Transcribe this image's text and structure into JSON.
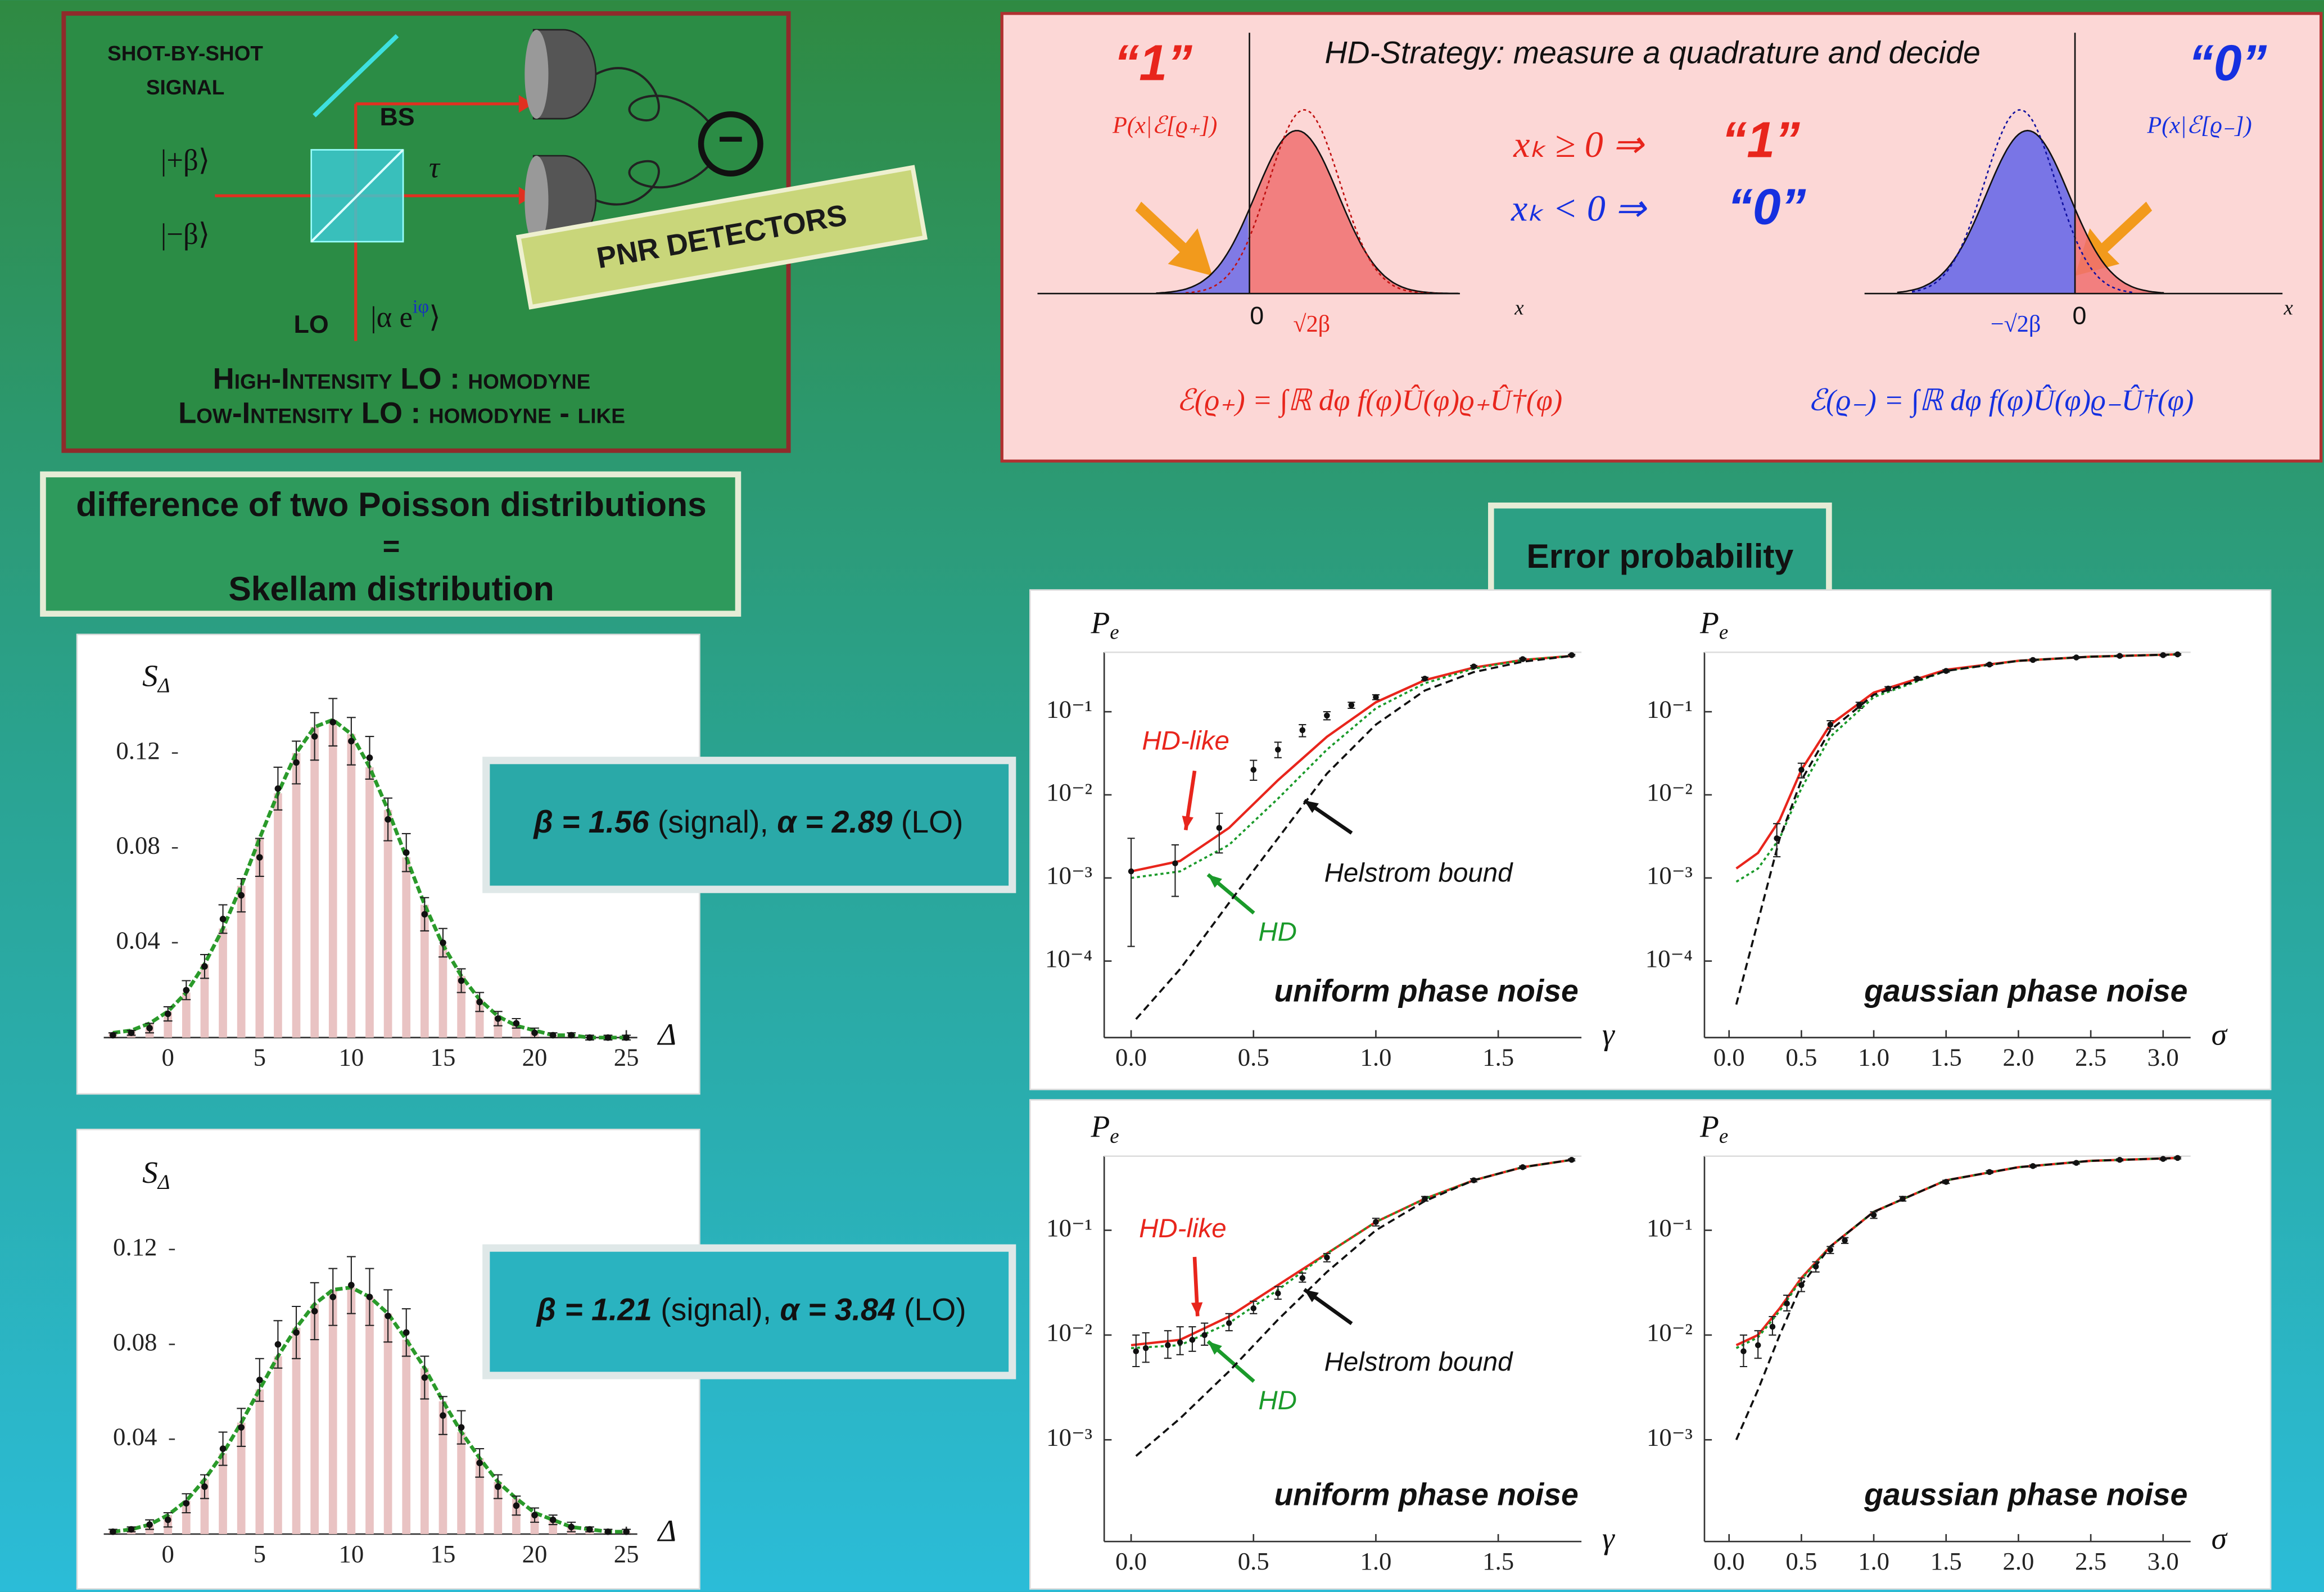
{
  "setup": {
    "signal_title": [
      "SHOT-BY-SHOT",
      "SIGNAL"
    ],
    "beam_splitter": "BS",
    "transmissivity": "τ",
    "state_plus": "|+β⟩",
    "state_minus": "|−β⟩",
    "local_oscillator": "LO",
    "lo_state": [
      "|α e",
      "iφ",
      "⟩"
    ],
    "detectors": "PNR DETECTORS",
    "subtract": "−",
    "notes": [
      "High-Intensity LO : homodyne",
      "Low-Intensity LO : homodyne - like"
    ]
  },
  "strategy": {
    "title": "HD-Strategy: measure a quadrature and decide",
    "label_one": "“1”",
    "label_zero": "“0”",
    "dist_plus": "P(x|ℰ[ϱ₊])",
    "dist_minus": "P(x|ℰ[ϱ₋])",
    "rules": [
      {
        "condition": "xₖ ≥ 0 ⇒",
        "outcome": "“1”"
      },
      {
        "condition": "xₖ < 0 ⇒",
        "outcome": "“0”"
      }
    ],
    "ticks_plus": [
      "0",
      "√2β"
    ],
    "ticks_minus": [
      "−√2β",
      "0"
    ],
    "axis": "x",
    "channel_plus": "ℰ(ϱ₊) = ∫ℝ dφ f(φ)Û(φ)ϱ₊Û†(φ)",
    "channel_minus": "ℰ(ϱ₋) = ∫ℝ dφ f(φ)Û(φ)ϱ₋Û†(φ)"
  },
  "skellam_label": [
    "difference of two Poisson distributions",
    "=",
    "Skellam distribution"
  ],
  "error_label": "Error probability",
  "settings": [
    {
      "beta": "β = 1.56",
      "beta_note": " (signal), ",
      "alpha": "α = 2.89",
      "alpha_note": " (LO)"
    },
    {
      "beta": "β = 1.21",
      "beta_note": " (signal), ",
      "alpha": "α = 3.84",
      "alpha_note": " (LO)"
    }
  ],
  "chart_data": [
    {
      "type": "bar",
      "ylabel": "S",
      "ylabel_sub": "Δ",
      "xlabel": "Δ",
      "color": "#e9c3c3",
      "fit_color": "#2a9a2a",
      "x": [
        -3,
        -2,
        -1,
        0,
        1,
        2,
        3,
        4,
        5,
        6,
        7,
        8,
        9,
        10,
        11,
        12,
        13,
        14,
        15,
        16,
        17,
        18,
        19,
        20,
        21,
        22,
        23,
        24,
        25
      ],
      "values": [
        0.002,
        0.003,
        0.006,
        0.011,
        0.019,
        0.031,
        0.046,
        0.064,
        0.084,
        0.103,
        0.12,
        0.131,
        0.134,
        0.128,
        0.114,
        0.096,
        0.076,
        0.056,
        0.039,
        0.026,
        0.016,
        0.009,
        0.005,
        0.003,
        0.001,
        0.001,
        0.0,
        0.0,
        0.0
      ],
      "measured": {
        "values": [
          0.001,
          0.002,
          0.004,
          0.01,
          0.02,
          0.03,
          0.05,
          0.06,
          0.076,
          0.105,
          0.116,
          0.127,
          0.133,
          0.125,
          0.118,
          0.092,
          0.078,
          0.052,
          0.04,
          0.024,
          0.015,
          0.008,
          0.006,
          0.002,
          0.001,
          0.001,
          0.0,
          0.0,
          0.0
        ],
        "errors": [
          0.001,
          0.001,
          0.002,
          0.003,
          0.004,
          0.005,
          0.006,
          0.007,
          0.008,
          0.009,
          0.009,
          0.01,
          0.01,
          0.01,
          0.009,
          0.009,
          0.008,
          0.007,
          0.006,
          0.005,
          0.004,
          0.003,
          0.002,
          0.002,
          0.001,
          0.001,
          0.001,
          0.001,
          0.001
        ]
      },
      "xlim": [
        -3.5,
        25.6
      ],
      "ylim": [
        0,
        0.16
      ],
      "xticks": [
        0,
        5,
        10,
        15,
        20,
        25
      ],
      "yticks": [
        0.04,
        0.08,
        0.12
      ]
    },
    {
      "type": "bar",
      "ylabel": "S",
      "ylabel_sub": "Δ",
      "xlabel": "Δ",
      "color": "#e9c3c3",
      "fit_color": "#2a9a2a",
      "x": [
        -3,
        -2,
        -1,
        0,
        1,
        2,
        3,
        4,
        5,
        6,
        7,
        8,
        9,
        10,
        11,
        12,
        13,
        14,
        15,
        16,
        17,
        18,
        19,
        20,
        21,
        22,
        23,
        24,
        25
      ],
      "values": [
        0.001,
        0.002,
        0.004,
        0.008,
        0.014,
        0.023,
        0.034,
        0.047,
        0.061,
        0.075,
        0.087,
        0.097,
        0.103,
        0.104,
        0.1,
        0.093,
        0.082,
        0.07,
        0.056,
        0.043,
        0.032,
        0.022,
        0.015,
        0.009,
        0.006,
        0.003,
        0.002,
        0.001,
        0.001
      ],
      "measured": {
        "values": [
          0.001,
          0.002,
          0.004,
          0.006,
          0.013,
          0.02,
          0.036,
          0.045,
          0.065,
          0.08,
          0.085,
          0.094,
          0.1,
          0.105,
          0.1,
          0.092,
          0.085,
          0.066,
          0.05,
          0.045,
          0.03,
          0.02,
          0.012,
          0.008,
          0.006,
          0.003,
          0.002,
          0.001,
          0.001
        ],
        "errors": [
          0.001,
          0.001,
          0.002,
          0.003,
          0.004,
          0.005,
          0.007,
          0.008,
          0.009,
          0.01,
          0.011,
          0.012,
          0.012,
          0.012,
          0.012,
          0.011,
          0.01,
          0.009,
          0.008,
          0.007,
          0.006,
          0.005,
          0.004,
          0.003,
          0.002,
          0.002,
          0.001,
          0.001,
          0.001
        ]
      },
      "xlim": [
        -3.5,
        25.6
      ],
      "ylim": [
        0,
        0.16
      ],
      "xticks": [
        0,
        5,
        10,
        15,
        20,
        25
      ],
      "yticks": [
        0.04,
        0.08,
        0.12
      ]
    },
    {
      "type": "line",
      "log_y": true,
      "ylabel": "P",
      "ylabel_sub": "e",
      "xlabel": "γ",
      "subtitle": "uniform phase noise",
      "series": [
        {
          "name": "HD-like",
          "color": "#e8251c",
          "style": "solid",
          "x": [
            0,
            0.2,
            0.4,
            0.6,
            0.8,
            1.0,
            1.2,
            1.4,
            1.6,
            1.8
          ],
          "values": [
            0.0012,
            0.0016,
            0.004,
            0.015,
            0.05,
            0.13,
            0.24,
            0.34,
            0.42,
            0.47
          ]
        },
        {
          "name": "HD",
          "color": "#1a9a2a",
          "style": "dotted",
          "x": [
            0,
            0.2,
            0.4,
            0.6,
            0.8,
            1.0,
            1.2,
            1.4,
            1.6,
            1.8
          ],
          "values": [
            0.001,
            0.0012,
            0.0025,
            0.009,
            0.035,
            0.11,
            0.22,
            0.33,
            0.42,
            0.47
          ]
        },
        {
          "name": "Helstrom bound",
          "color": "#111111",
          "style": "dashed",
          "x": [
            0.02,
            0.2,
            0.4,
            0.6,
            0.8,
            1.0,
            1.2,
            1.4,
            1.6,
            1.8
          ],
          "values": [
            2e-05,
            8e-05,
            0.0005,
            0.003,
            0.018,
            0.07,
            0.18,
            0.3,
            0.4,
            0.47
          ]
        }
      ],
      "measured": {
        "x": [
          0.0,
          0.18,
          0.36,
          0.5,
          0.6,
          0.7,
          0.8,
          0.9,
          1.0,
          1.2,
          1.4,
          1.6,
          1.8
        ],
        "values": [
          0.0012,
          0.0015,
          0.004,
          0.02,
          0.035,
          0.06,
          0.09,
          0.12,
          0.15,
          0.25,
          0.35,
          0.43,
          0.48
        ],
        "low": [
          0.00015,
          0.0006,
          0.002,
          0.015,
          0.028,
          0.05,
          0.08,
          0.11,
          0.14,
          0.24,
          0.34,
          0.42,
          0.47
        ],
        "high": [
          0.003,
          0.0025,
          0.006,
          0.026,
          0.043,
          0.07,
          0.1,
          0.13,
          0.16,
          0.26,
          0.36,
          0.44,
          0.49
        ]
      },
      "xlim": [
        -0.11,
        1.84
      ],
      "ylim": [
        1.2e-05,
        0.52
      ],
      "xticks": [
        {
          "value": 0,
          "label": "0.0"
        },
        0.5,
        {
          "value": 1,
          "label": "1.0"
        },
        1.5
      ],
      "yticks": [
        {
          "value": 0.1,
          "label": "10⁻¹"
        },
        {
          "value": 0.01,
          "label": "10⁻²"
        },
        {
          "value": 0.001,
          "label": "10⁻³"
        },
        {
          "value": 0.0001,
          "label": "10⁻⁴"
        }
      ]
    },
    {
      "type": "line",
      "log_y": true,
      "ylabel": "P",
      "ylabel_sub": "e",
      "xlabel": "σ",
      "subtitle": "gaussian phase noise",
      "series": [
        {
          "color": "#e8251c",
          "style": "solid",
          "x": [
            0.05,
            0.2,
            0.35,
            0.5,
            0.7,
            1.0,
            1.5,
            2.0,
            2.5,
            3.1
          ],
          "values": [
            0.0013,
            0.002,
            0.005,
            0.02,
            0.07,
            0.17,
            0.32,
            0.41,
            0.46,
            0.49
          ]
        },
        {
          "color": "#1a9a2a",
          "style": "dotted",
          "x": [
            0.05,
            0.2,
            0.35,
            0.5,
            0.7,
            1.0,
            1.5,
            2.0,
            2.5,
            3.1
          ],
          "values": [
            0.0009,
            0.0013,
            0.003,
            0.012,
            0.05,
            0.15,
            0.31,
            0.41,
            0.46,
            0.49
          ]
        },
        {
          "color": "#111111",
          "style": "dashed",
          "x": [
            0.05,
            0.2,
            0.35,
            0.5,
            0.7,
            1.0,
            1.5,
            2.0,
            2.5,
            3.1
          ],
          "values": [
            3e-05,
            0.0003,
            0.003,
            0.015,
            0.06,
            0.16,
            0.31,
            0.41,
            0.46,
            0.49
          ]
        }
      ],
      "measured": {
        "x": [
          0.33,
          0.5,
          0.7,
          0.9,
          1.1,
          1.3,
          1.5,
          1.8,
          2.1,
          2.4,
          2.7,
          3.0,
          3.1
        ],
        "values": [
          0.003,
          0.02,
          0.07,
          0.12,
          0.19,
          0.25,
          0.31,
          0.37,
          0.42,
          0.45,
          0.47,
          0.48,
          0.49
        ],
        "low": [
          0.0018,
          0.016,
          0.062,
          0.11,
          0.18,
          0.24,
          0.3,
          0.36,
          0.41,
          0.44,
          0.46,
          0.47,
          0.48
        ],
        "high": [
          0.0045,
          0.024,
          0.078,
          0.13,
          0.2,
          0.26,
          0.32,
          0.38,
          0.43,
          0.46,
          0.48,
          0.49,
          0.5
        ]
      },
      "xlim": [
        -0.17,
        3.19
      ],
      "ylim": [
        1.2e-05,
        0.52
      ],
      "xticks": [
        {
          "value": 0,
          "label": "0.0"
        },
        0.5,
        {
          "value": 1,
          "label": "1.0"
        },
        1.5,
        {
          "value": 2,
          "label": "2.0"
        },
        2.5,
        {
          "value": 3,
          "label": "3.0"
        }
      ],
      "yticks": [
        {
          "value": 0.1,
          "label": "10⁻¹"
        },
        {
          "value": 0.01,
          "label": "10⁻²"
        },
        {
          "value": 0.001,
          "label": "10⁻³"
        },
        {
          "value": 0.0001,
          "label": "10⁻⁴"
        }
      ]
    },
    {
      "type": "line",
      "log_y": true,
      "ylabel": "P",
      "ylabel_sub": "e",
      "xlabel": "γ",
      "subtitle": "uniform phase noise",
      "series": [
        {
          "name": "HD-like",
          "color": "#e8251c",
          "style": "solid",
          "x": [
            0,
            0.2,
            0.4,
            0.6,
            0.8,
            1.0,
            1.2,
            1.4,
            1.6,
            1.8
          ],
          "values": [
            0.008,
            0.009,
            0.015,
            0.03,
            0.06,
            0.12,
            0.2,
            0.3,
            0.4,
            0.47
          ]
        },
        {
          "name": "HD",
          "color": "#1a9a2a",
          "style": "dotted",
          "x": [
            0,
            0.2,
            0.4,
            0.6,
            0.8,
            1.0,
            1.2,
            1.4,
            1.6,
            1.8
          ],
          "values": [
            0.0075,
            0.008,
            0.013,
            0.027,
            0.06,
            0.12,
            0.2,
            0.3,
            0.4,
            0.47
          ]
        },
        {
          "name": "Helstrom bound",
          "color": "#111111",
          "style": "dashed",
          "x": [
            0.02,
            0.2,
            0.4,
            0.6,
            0.8,
            1.0,
            1.2,
            1.4,
            1.6,
            1.8
          ],
          "values": [
            0.0007,
            0.0016,
            0.0045,
            0.014,
            0.04,
            0.1,
            0.19,
            0.3,
            0.4,
            0.47
          ]
        }
      ],
      "measured": {
        "x": [
          0.02,
          0.06,
          0.15,
          0.2,
          0.25,
          0.3,
          0.4,
          0.5,
          0.6,
          0.7,
          0.8,
          1.0,
          1.2,
          1.4,
          1.6,
          1.8
        ],
        "values": [
          0.007,
          0.0075,
          0.008,
          0.0085,
          0.009,
          0.01,
          0.013,
          0.018,
          0.025,
          0.035,
          0.055,
          0.12,
          0.2,
          0.3,
          0.4,
          0.47
        ],
        "low": [
          0.005,
          0.0055,
          0.006,
          0.0065,
          0.007,
          0.008,
          0.011,
          0.016,
          0.022,
          0.032,
          0.05,
          0.11,
          0.19,
          0.29,
          0.39,
          0.46
        ],
        "high": [
          0.01,
          0.0105,
          0.011,
          0.012,
          0.012,
          0.013,
          0.016,
          0.021,
          0.029,
          0.039,
          0.06,
          0.13,
          0.21,
          0.31,
          0.41,
          0.48
        ]
      },
      "xlim": [
        -0.11,
        1.84
      ],
      "ylim": [
        0.000107,
        0.51
      ],
      "xticks": [
        {
          "value": 0,
          "label": "0.0"
        },
        0.5,
        {
          "value": 1,
          "label": "1.0"
        },
        1.5
      ],
      "yticks": [
        {
          "value": 0.1,
          "label": "10⁻¹"
        },
        {
          "value": 0.01,
          "label": "10⁻²"
        },
        {
          "value": 0.001,
          "label": "10⁻³"
        }
      ]
    },
    {
      "type": "line",
      "log_y": true,
      "ylabel": "P",
      "ylabel_sub": "e",
      "xlabel": "σ",
      "subtitle": "gaussian phase noise",
      "series": [
        {
          "color": "#e8251c",
          "style": "solid",
          "x": [
            0.05,
            0.2,
            0.35,
            0.5,
            0.7,
            1.0,
            1.5,
            2.0,
            2.5,
            3.1
          ],
          "values": [
            0.008,
            0.01,
            0.018,
            0.035,
            0.07,
            0.15,
            0.3,
            0.4,
            0.46,
            0.49
          ]
        },
        {
          "color": "#1a9a2a",
          "style": "dotted",
          "x": [
            0.05,
            0.2,
            0.35,
            0.5,
            0.7,
            1.0,
            1.5,
            2.0,
            2.5,
            3.1
          ],
          "values": [
            0.0075,
            0.0095,
            0.017,
            0.034,
            0.07,
            0.15,
            0.3,
            0.4,
            0.46,
            0.49
          ]
        },
        {
          "color": "#111111",
          "style": "dashed",
          "x": [
            0.05,
            0.2,
            0.35,
            0.5,
            0.7,
            1.0,
            1.5,
            2.0,
            2.5,
            3.1
          ],
          "values": [
            0.001,
            0.003,
            0.01,
            0.03,
            0.07,
            0.15,
            0.3,
            0.4,
            0.46,
            0.49
          ]
        }
      ],
      "measured": {
        "x": [
          0.1,
          0.2,
          0.3,
          0.4,
          0.5,
          0.6,
          0.7,
          0.8,
          1.0,
          1.2,
          1.5,
          1.8,
          2.1,
          2.4,
          2.7,
          3.0,
          3.1
        ],
        "values": [
          0.007,
          0.008,
          0.012,
          0.02,
          0.03,
          0.045,
          0.065,
          0.08,
          0.14,
          0.2,
          0.29,
          0.36,
          0.41,
          0.44,
          0.47,
          0.48,
          0.49
        ],
        "low": [
          0.005,
          0.006,
          0.01,
          0.017,
          0.026,
          0.04,
          0.06,
          0.075,
          0.13,
          0.19,
          0.28,
          0.35,
          0.4,
          0.43,
          0.46,
          0.47,
          0.48
        ],
        "high": [
          0.01,
          0.011,
          0.015,
          0.024,
          0.035,
          0.05,
          0.07,
          0.085,
          0.15,
          0.21,
          0.3,
          0.37,
          0.42,
          0.45,
          0.48,
          0.49,
          0.5
        ]
      },
      "xlim": [
        -0.17,
        3.19
      ],
      "ylim": [
        0.000107,
        0.51
      ],
      "xticks": [
        {
          "value": 0,
          "label": "0.0"
        },
        0.5,
        {
          "value": 1,
          "label": "1.0"
        },
        1.5,
        {
          "value": 2,
          "label": "2.0"
        },
        2.5,
        {
          "value": 3,
          "label": "3.0"
        }
      ],
      "yticks": [
        {
          "value": 0.1,
          "label": "10⁻¹"
        },
        {
          "value": 0.01,
          "label": "10⁻²"
        },
        {
          "value": 0.001,
          "label": "10⁻³"
        }
      ]
    }
  ]
}
